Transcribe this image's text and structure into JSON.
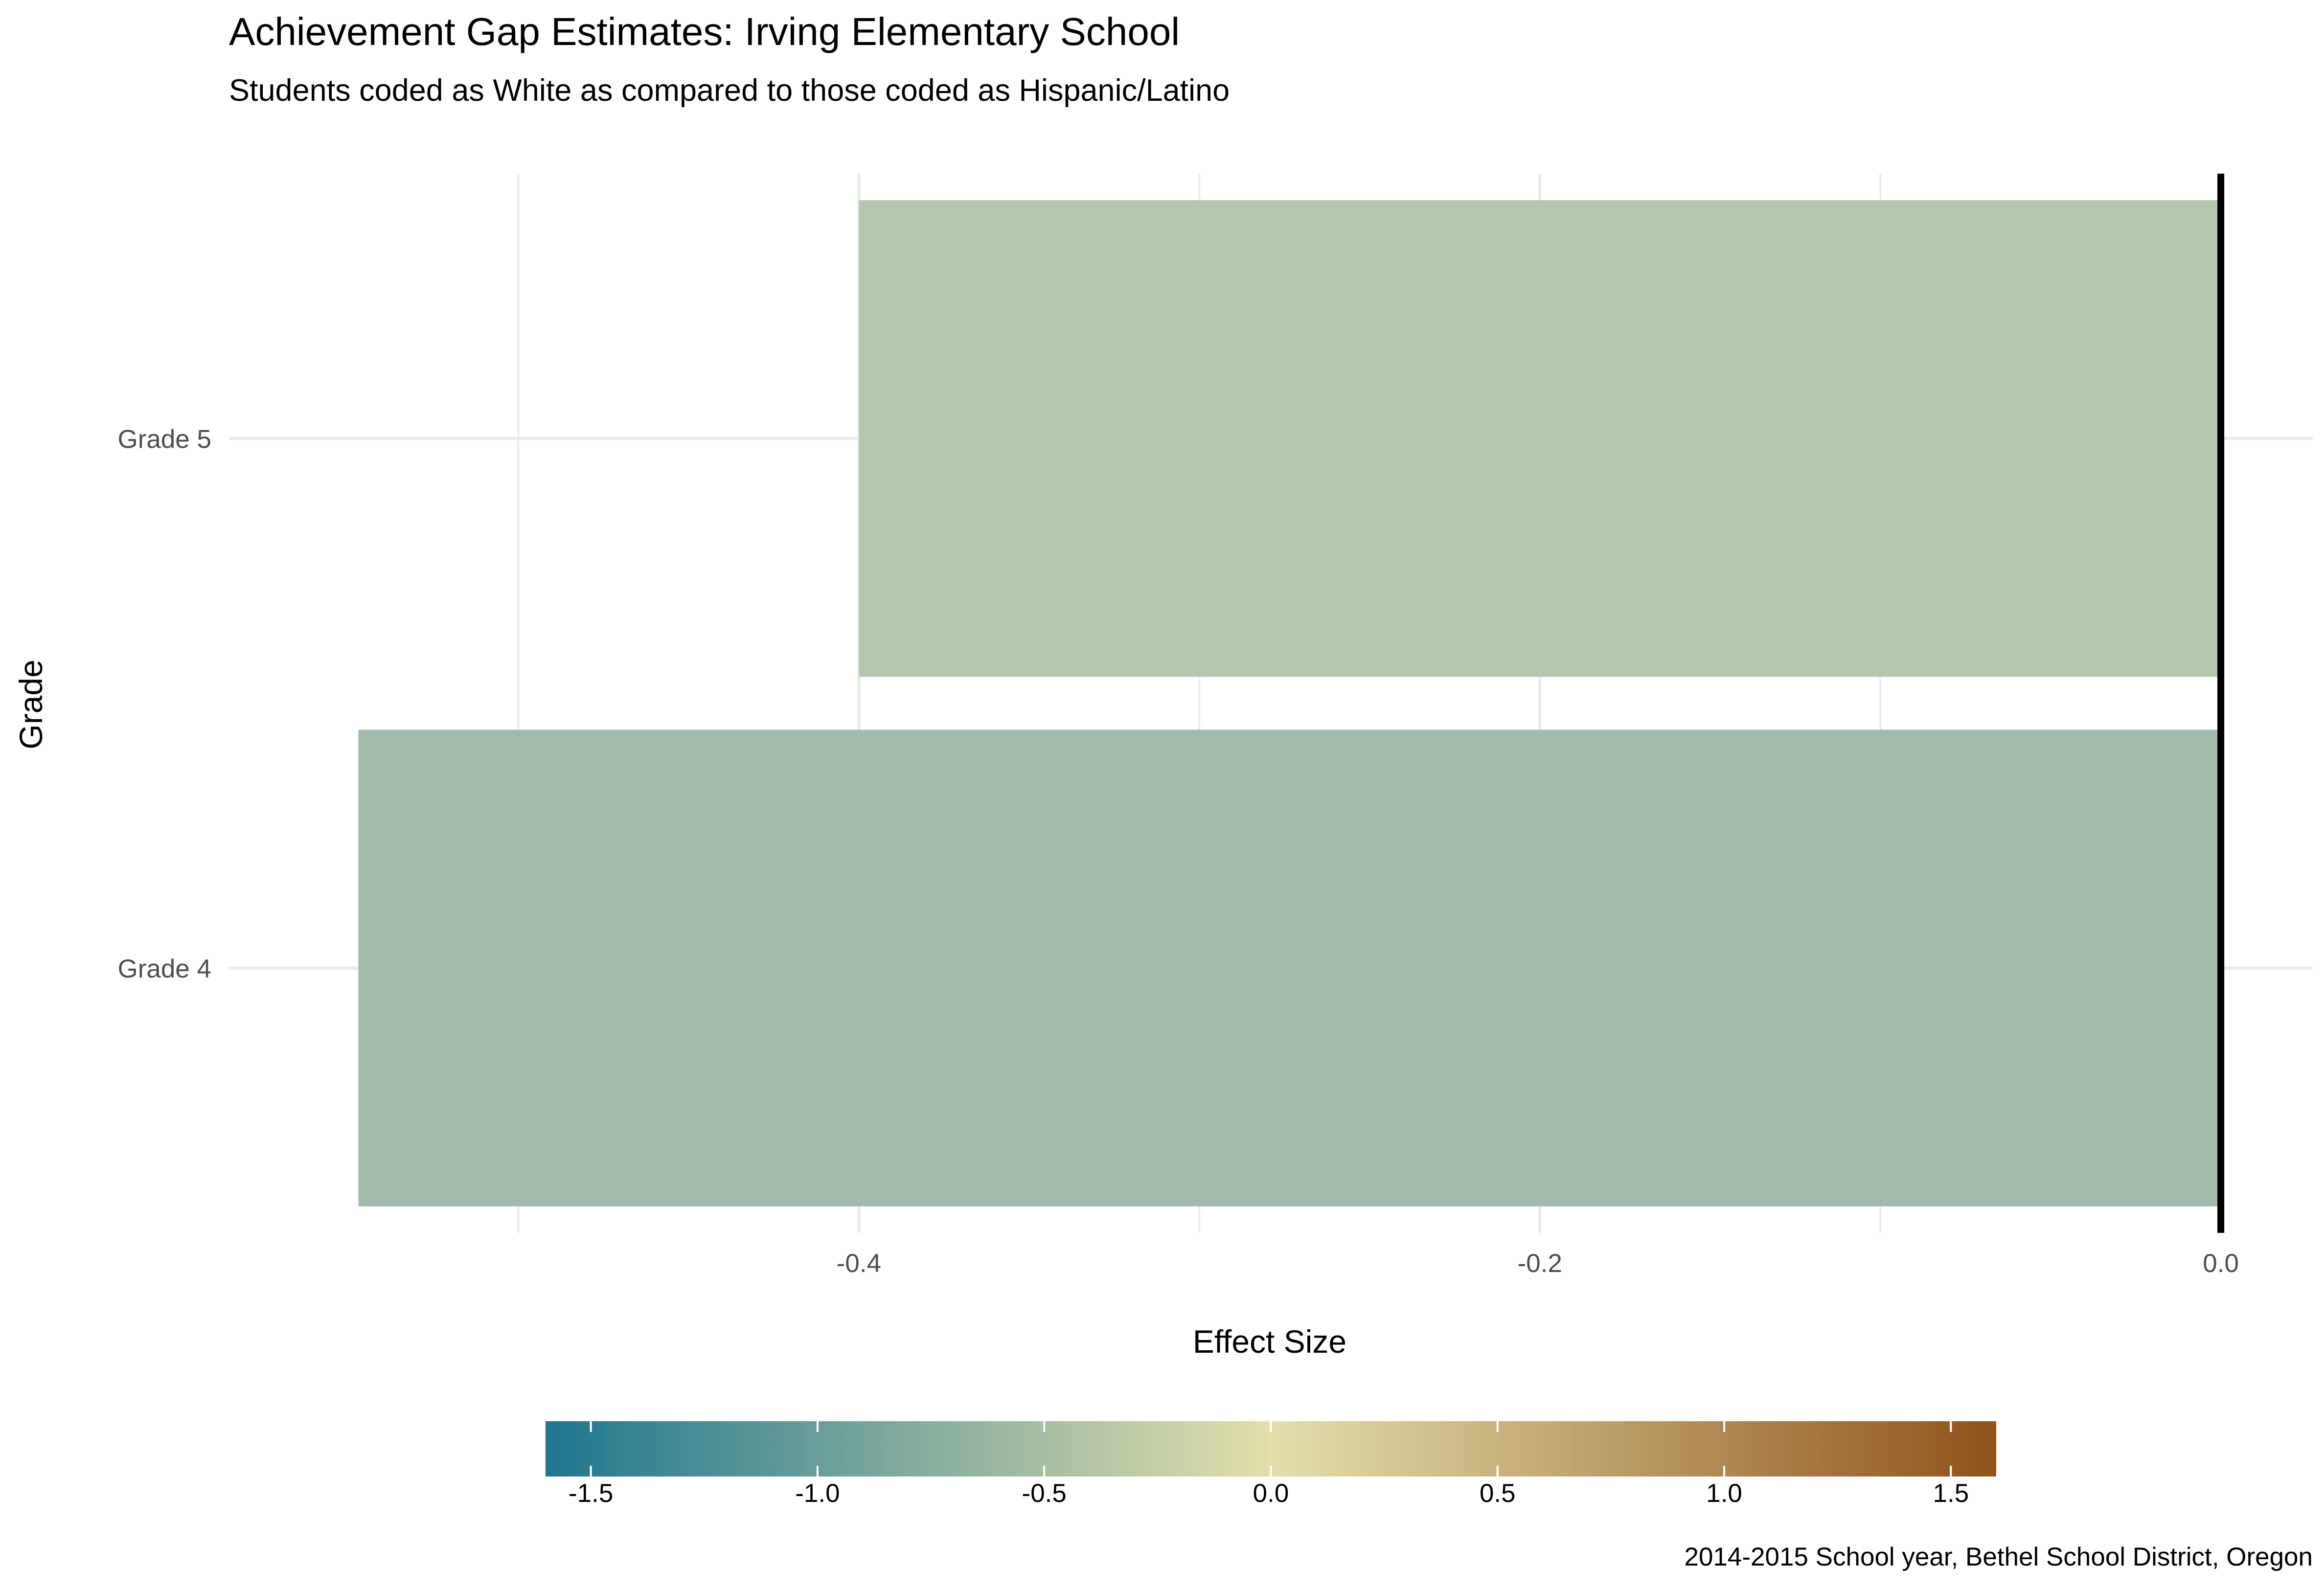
{
  "chart_data": {
    "type": "bar",
    "orientation": "horizontal",
    "title": "Achievement Gap Estimates: Irving Elementary School",
    "subtitle": "Students coded as White as compared to those coded as Hispanic/Latino",
    "caption": "2014-2015 School year, Bethel School District, Oregon",
    "xlabel": "Effect Size",
    "ylabel": "Grade",
    "categories": [
      "Grade 4",
      "Grade 5"
    ],
    "values": [
      -0.547,
      -0.4
    ],
    "xlim": [
      -0.585,
      0.027
    ],
    "xticks": [
      {
        "value": -0.4,
        "label": "-0.4"
      },
      {
        "value": -0.2,
        "label": "-0.2"
      },
      {
        "value": 0.0,
        "label": "0.0"
      }
    ],
    "reference_line": 0,
    "grid": true,
    "colorscale": {
      "name": "Effect Size fill",
      "range": [
        -1.6,
        1.6
      ],
      "low_color": "#1f768f",
      "mid_color": "#e4dfac",
      "high_color": "#8f531c",
      "ticks": [
        {
          "value": -1.5,
          "label": "-1.5"
        },
        {
          "value": -1.0,
          "label": "-1.0"
        },
        {
          "value": -0.5,
          "label": "-0.5"
        },
        {
          "value": 0.0,
          "label": "0.0"
        },
        {
          "value": 0.5,
          "label": "0.5"
        },
        {
          "value": 1.0,
          "label": "1.0"
        },
        {
          "value": 1.5,
          "label": "1.5"
        }
      ],
      "position": "bottom"
    },
    "bar_colors": [
      "#a1baa9",
      "#b4c6ad"
    ]
  }
}
